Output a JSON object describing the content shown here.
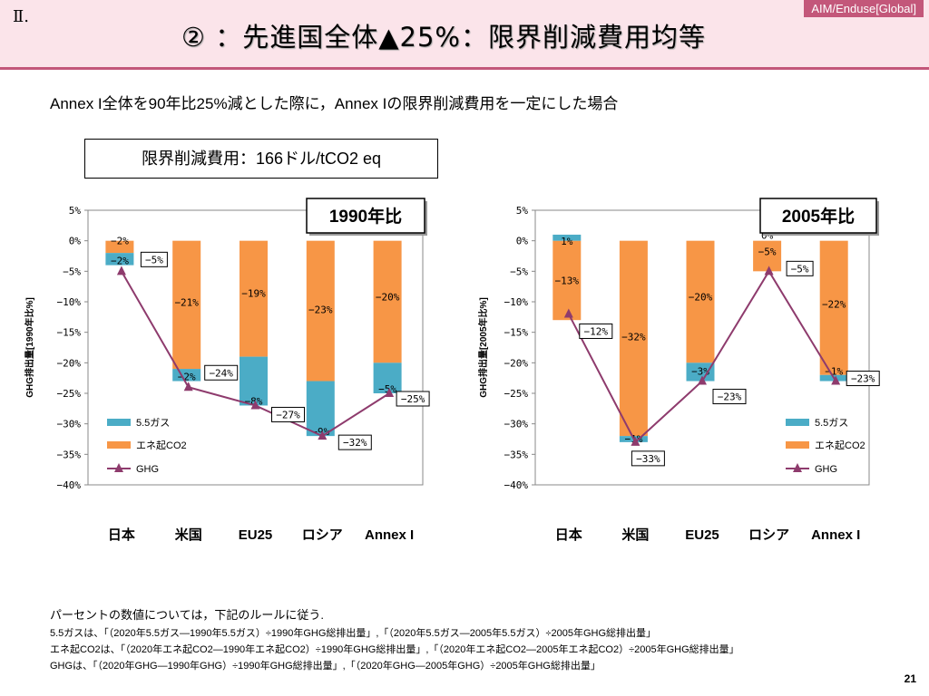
{
  "header": {
    "section": "Ⅱ.",
    "tag": "AIM/Enduse[Global]",
    "title": "② ：先進国全体▲25%：限界削減費用均等"
  },
  "subtitle": "Annex I全体を90年比25%減とした際に，Annex Iの限界削減費用を一定にした場合",
  "cost_box": "限界削減費用：166ドル/tCO2 eq",
  "colors": {
    "gas": "#4bacc6",
    "co2": "#f79646",
    "ghg": "#8e3b6d"
  },
  "chart_data": [
    {
      "type": "bar",
      "title": "1990年比",
      "ylabel": "GHG排出量[1990年比%]",
      "ylim": [
        -40,
        5
      ],
      "yticks": [
        "5%",
        "0%",
        "−5%",
        "−10%",
        "−15%",
        "−20%",
        "−25%",
        "−30%",
        "−35%",
        "−40%"
      ],
      "categories": [
        "日本",
        "米国",
        "EU25",
        "ロシア",
        "Annex I"
      ],
      "series": [
        {
          "name": "5.5ガス",
          "type": "bar",
          "values": [
            -2,
            -2,
            -8,
            -9,
            -5
          ],
          "labels": [
            "−2%",
            "−2%",
            "−8%",
            "−9%",
            "−5%"
          ]
        },
        {
          "name": "エネ起CO2",
          "type": "bar",
          "values": [
            -2,
            -21,
            -19,
            -23,
            -20
          ],
          "labels": [
            "−2%",
            "−21%",
            "−19%",
            "−23%",
            "−20%"
          ]
        },
        {
          "name": "GHG",
          "type": "line",
          "values": [
            -5,
            -24,
            -27,
            -32,
            -25
          ],
          "labels": [
            "−5%",
            "−24%",
            "−27%",
            "−32%",
            "−25%"
          ]
        }
      ],
      "legend": "bottom-left"
    },
    {
      "type": "bar",
      "title": "2005年比",
      "ylabel": "GHG排出量[2005年比%]",
      "ylim": [
        -40,
        5
      ],
      "yticks": [
        "5%",
        "0%",
        "−5%",
        "−10%",
        "−15%",
        "−20%",
        "−25%",
        "−30%",
        "−35%",
        "−40%"
      ],
      "categories": [
        "日本",
        "米国",
        "EU25",
        "ロシア",
        "Annex I"
      ],
      "series": [
        {
          "name": "5.5ガス",
          "type": "bar",
          "values": [
            1,
            -1,
            -3,
            0,
            -1
          ],
          "labels": [
            "1%",
            "−1%",
            "−3%",
            "0%",
            "−1%"
          ]
        },
        {
          "name": "エネ起CO2",
          "type": "bar",
          "values": [
            -13,
            -32,
            -20,
            -5,
            -22
          ],
          "labels": [
            "−13%",
            "−32%",
            "−20%",
            "−5%",
            "−22%"
          ]
        },
        {
          "name": "GHG",
          "type": "line",
          "values": [
            -12,
            -33,
            -23,
            -5,
            -23
          ],
          "labels": [
            "−12%",
            "−33%",
            "−23%",
            "−5%",
            "−23%"
          ]
        }
      ],
      "legend": "bottom-right"
    }
  ],
  "footnotes": [
    "パーセントの数値については，下記のルールに従う.",
    "5.5ガスは、「（2020年5.5ガス―1990年5.5ガス）÷1990年GHG総排出量」,「（2020年5.5ガス―2005年5.5ガス）÷2005年GHG総排出量」",
    "エネ起CO2は、「（2020年エネ起CO2―1990年エネ起CO2）÷1990年GHG総排出量」,「（2020年エネ起CO2―2005年エネ起CO2）÷2005年GHG総排出量」",
    "GHGは、「（2020年GHG―1990年GHG）÷1990年GHG総排出量」,「（2020年GHG―2005年GHG）÷2005年GHG総排出量」"
  ],
  "page_number": "21"
}
